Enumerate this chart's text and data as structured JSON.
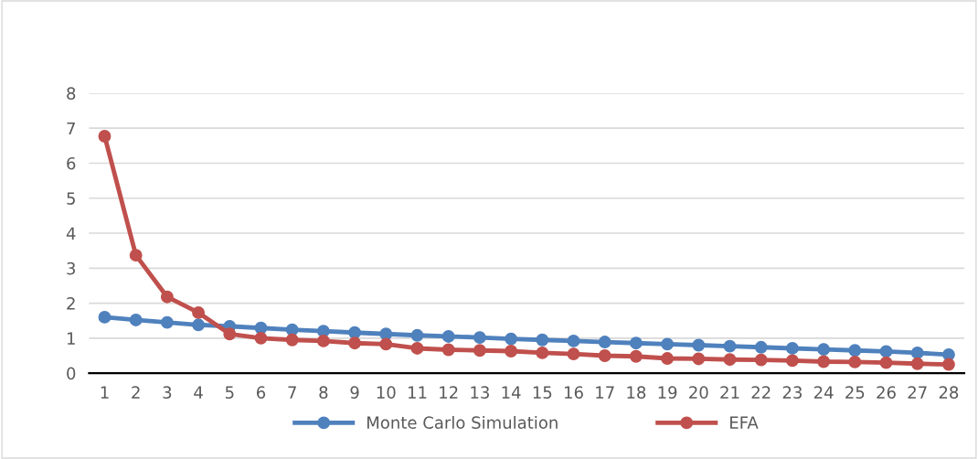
{
  "chart_data": {
    "type": "line",
    "categories": [
      "1",
      "2",
      "3",
      "4",
      "5",
      "6",
      "7",
      "8",
      "9",
      "10",
      "11",
      "12",
      "13",
      "14",
      "15",
      "16",
      "17",
      "18",
      "19",
      "20",
      "21",
      "22",
      "23",
      "24",
      "25",
      "26",
      "27",
      "28"
    ],
    "series": [
      {
        "name": "Monte Carlo Simulation",
        "color": "#4f81bd",
        "values": [
          1.6,
          1.52,
          1.45,
          1.38,
          1.34,
          1.29,
          1.24,
          1.2,
          1.16,
          1.12,
          1.08,
          1.05,
          1.02,
          0.98,
          0.95,
          0.92,
          0.89,
          0.86,
          0.83,
          0.8,
          0.77,
          0.74,
          0.71,
          0.68,
          0.65,
          0.62,
          0.58,
          0.53
        ]
      },
      {
        "name": "EFA",
        "color": "#c0504d",
        "values": [
          6.77,
          3.37,
          2.18,
          1.73,
          1.12,
          1.0,
          0.95,
          0.92,
          0.86,
          0.83,
          0.71,
          0.67,
          0.65,
          0.63,
          0.58,
          0.55,
          0.5,
          0.48,
          0.42,
          0.41,
          0.39,
          0.38,
          0.36,
          0.33,
          0.32,
          0.3,
          0.27,
          0.25
        ]
      }
    ],
    "ylim": [
      0,
      8
    ],
    "yticks": [
      0,
      1,
      2,
      3,
      4,
      5,
      6,
      7,
      8
    ],
    "grid": "y",
    "legend": "bottom",
    "marker": "circle",
    "line_style": "solid"
  }
}
